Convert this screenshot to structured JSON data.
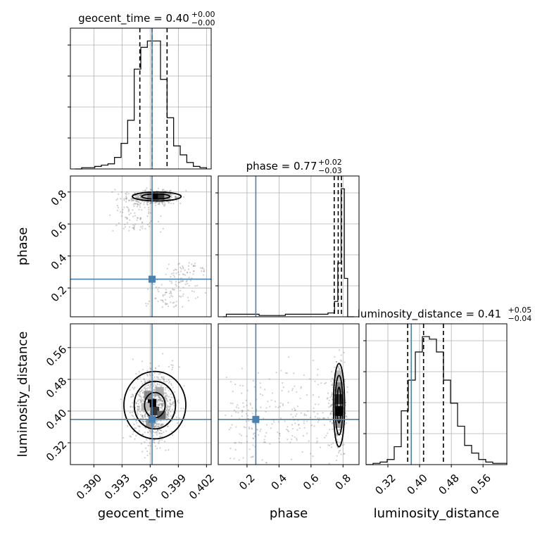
{
  "colors": {
    "truth": "#4682b4",
    "hist": "#000000",
    "grid": "#b0b0b0",
    "scatter": "#777777"
  },
  "chart_data": {
    "type": "corner",
    "parameters": [
      "geocent_time",
      "phase",
      "luminosity_distance"
    ],
    "ranges": {
      "geocent_time": [
        0.3875,
        0.4025
      ],
      "phase": [
        0.02,
        0.9
      ],
      "luminosity_distance": [
        0.265,
        0.62
      ]
    },
    "ticks": {
      "geocent_time": [
        "0.390",
        "0.393",
        "0.396",
        "0.399",
        "0.402"
      ],
      "phase": [
        "0.2",
        "0.4",
        "0.6",
        "0.8"
      ],
      "luminosity_distance": [
        "0.32",
        "0.40",
        "0.48",
        "0.56"
      ]
    },
    "truths": {
      "geocent_time": 0.3962,
      "phase": 0.255,
      "luminosity_distance": 0.379
    },
    "titles": {
      "geocent_time": {
        "prefix": "geocent_time = 0.40",
        "plus": "+0.00",
        "minus": "−0.00"
      },
      "phase": {
        "prefix": "phase = 0.77",
        "plus": "+0.02",
        "minus": "−0.03"
      },
      "luminosity_distance": {
        "prefix": "luminosity_distance = 0.41",
        "plus": "+0.05",
        "minus": "−0.04"
      }
    },
    "quantiles": {
      "geocent_time": [
        0.3949,
        0.3962,
        0.3978
      ],
      "phase": [
        0.745,
        0.77,
        0.79
      ],
      "luminosity_distance": [
        0.37,
        0.41,
        0.46
      ]
    },
    "histograms": {
      "geocent_time": {
        "edges_range": [
          0.388,
          0.402
        ],
        "counts": [
          0,
          1,
          1,
          2,
          3,
          4,
          9,
          20,
          38,
          78,
          95,
          100,
          100,
          70,
          40,
          18,
          11,
          5,
          2,
          1
        ]
      },
      "phase": {
        "edges_range": [
          0.05,
          0.87
        ],
        "counts": [
          0,
          2,
          2,
          2,
          2,
          2,
          2,
          2,
          2,
          2,
          2,
          1,
          1,
          1,
          1,
          1,
          1,
          1,
          1,
          2,
          2,
          2,
          2,
          2,
          2,
          2,
          2,
          2,
          2,
          2,
          2,
          2,
          3,
          3,
          12,
          42,
          100,
          30,
          0,
          0
        ]
      },
      "luminosity_distance": {
        "edges_range": [
          0.265,
          0.62
        ],
        "counts": [
          0,
          1,
          2,
          4,
          14,
          42,
          66,
          88,
          100,
          98,
          88,
          66,
          48,
          30,
          15,
          9,
          4,
          2,
          1,
          1
        ]
      }
    }
  }
}
